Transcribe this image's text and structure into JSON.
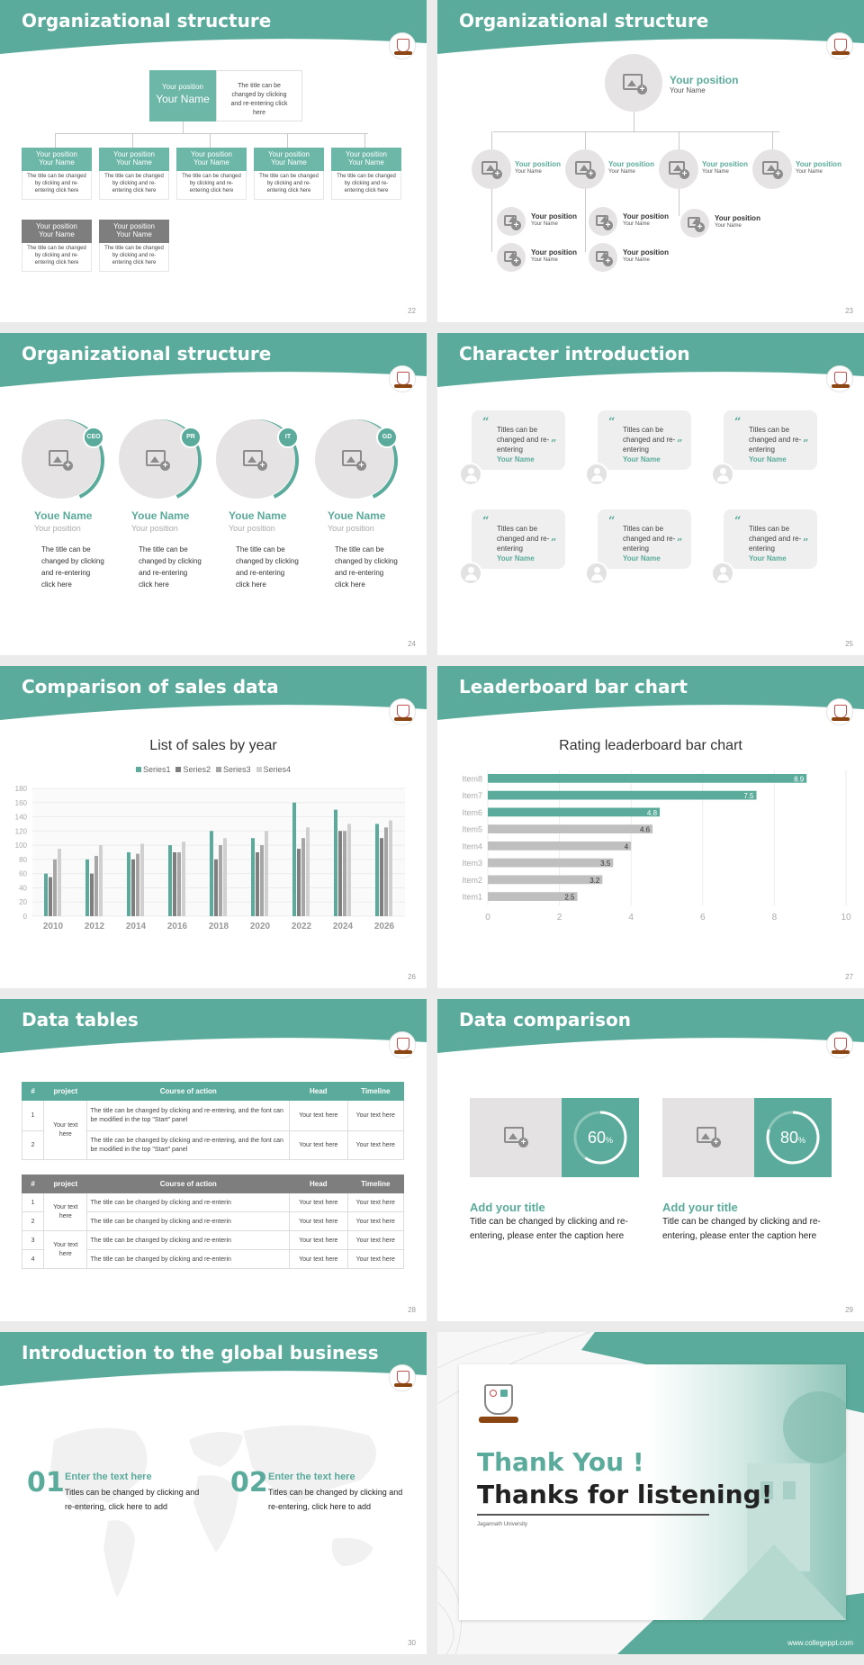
{
  "slide22": {
    "title": "Organizational structure",
    "page": "22",
    "top": {
      "position": "Your position",
      "name": "Your Name",
      "desc": "The title can be changed by clicking and re-entering click here"
    },
    "members": [
      {
        "position": "Your position",
        "name": "Your Name",
        "desc": "The title can be changed by clicking and re-entering click here"
      },
      {
        "position": "Your position",
        "name": "Your Name",
        "desc": "The title can be changed by clicking and re-entering click here"
      },
      {
        "position": "Your position",
        "name": "Your Name",
        "desc": "The title can be changed by clicking and re-entering click here"
      },
      {
        "position": "Your position",
        "name": "Your Name",
        "desc": "The title can be changed by clicking and re-entering click here"
      },
      {
        "position": "Your position",
        "name": "Your Name",
        "desc": "The title can be changed by clicking and re-entering click here"
      },
      {
        "position": "Your position",
        "name": "Your Name",
        "desc": "The title can be changed by clicking and re-entering click here"
      },
      {
        "position": "Your position",
        "name": "Your Name",
        "desc": "The title can be changed by clicking and re-entering click here"
      }
    ]
  },
  "slide23": {
    "title": "Organizational structure",
    "page": "23",
    "top": {
      "position": "Your position",
      "name": "Your Name"
    },
    "level2": [
      {
        "position": "Your position",
        "name": "Your Name"
      },
      {
        "position": "Your position",
        "name": "Your Name"
      },
      {
        "position": "Your position",
        "name": "Your Name"
      },
      {
        "position": "Your position",
        "name": "Your Name"
      }
    ],
    "level3": [
      {
        "position": "Your position",
        "name": "Your Name"
      },
      {
        "position": "Your position",
        "name": "Your Name"
      },
      {
        "position": "Your position",
        "name": "Your Name"
      },
      {
        "position": "Your position",
        "name": "Your Name"
      },
      {
        "position": "Your position",
        "name": "Your Name"
      }
    ]
  },
  "slide24": {
    "title": "Organizational structure",
    "page": "24",
    "people": [
      {
        "badge": "CEO",
        "name": "Youe Name",
        "position": "Your position",
        "desc": "The title can be changed by clicking and re-entering click here"
      },
      {
        "badge": "PR",
        "name": "Youe Name",
        "position": "Your position",
        "desc": "The title can be changed by clicking and re-entering click here"
      },
      {
        "badge": "IT",
        "name": "Youe Name",
        "position": "Your position",
        "desc": "The title can be changed by clicking and re-entering click here"
      },
      {
        "badge": "GD",
        "name": "Youe Name",
        "position": "Your position",
        "desc": "The title can be changed by clicking and re-entering click here"
      }
    ]
  },
  "slide25": {
    "title": "Character introduction",
    "page": "25",
    "cards": [
      {
        "text": "Titles can be changed and re-entering",
        "name": "Your Name"
      },
      {
        "text": "Titles can be changed and re-entering",
        "name": "Your Name"
      },
      {
        "text": "Titles can be changed and re-entering",
        "name": "Your Name"
      },
      {
        "text": "Titles can be changed and re-entering",
        "name": "Your Name"
      },
      {
        "text": "Titles can be changed and re-entering",
        "name": "Your Name"
      },
      {
        "text": "Titles can be changed and re-entering",
        "name": "Your Name"
      }
    ]
  },
  "slide26": {
    "title": "Comparison of sales data",
    "page": "26",
    "chart_data": {
      "type": "bar",
      "title": "List of sales by year",
      "categories": [
        "2010",
        "2012",
        "2014",
        "2016",
        "2018",
        "2020",
        "2022",
        "2024",
        "2026"
      ],
      "ylim": [
        0,
        180
      ],
      "yticks": [
        "0",
        "20",
        "40",
        "60",
        "80",
        "100",
        "120",
        "140",
        "160",
        "180"
      ],
      "legend": "top",
      "grid": true,
      "colors": [
        "#5aab9b",
        "#7f7f7f",
        "#a6a6a6",
        "#d0d0d0"
      ],
      "series": [
        {
          "name": "Series1",
          "values": [
            60,
            80,
            90,
            100,
            120,
            110,
            160,
            150,
            130
          ]
        },
        {
          "name": "Series2",
          "values": [
            55,
            60,
            80,
            90,
            80,
            90,
            95,
            120,
            110
          ]
        },
        {
          "name": "Series3",
          "values": [
            80,
            85,
            88,
            90,
            100,
            100,
            110,
            120,
            125
          ]
        },
        {
          "name": "Series4",
          "values": [
            95,
            100,
            102,
            105,
            110,
            120,
            125,
            130,
            135
          ]
        }
      ]
    }
  },
  "slide27": {
    "title": "Leaderboard bar chart",
    "page": "27",
    "chart_data": {
      "type": "bar",
      "orientation": "horizontal",
      "title": "Rating leaderboard bar chart",
      "categories": [
        "Item8",
        "Item7",
        "Item6",
        "Item5",
        "Item4",
        "Item3",
        "Item2",
        "Item1"
      ],
      "values": [
        8.9,
        7.5,
        4.8,
        4.6,
        4,
        3.5,
        3.2,
        2.5
      ],
      "labels": [
        "8.9",
        "7.5",
        "4.8",
        "4.6",
        "4",
        "3.5",
        "3.2",
        "2.5"
      ],
      "xlim": [
        0,
        10
      ],
      "xticks": [
        "0",
        "2",
        "4",
        "6",
        "8",
        "10"
      ],
      "colors": [
        "#5aab9b",
        "#5aab9b",
        "#5aab9b",
        "#bfbfbf",
        "#bfbfbf",
        "#bfbfbf",
        "#bfbfbf",
        "#bfbfbf"
      ]
    }
  },
  "slide28": {
    "title": "Data tables",
    "page": "28",
    "headers": [
      "#",
      "project",
      "Course of action",
      "Head",
      "Timeline"
    ],
    "table1": {
      "project": "Your text here",
      "rows": [
        {
          "num": "1",
          "action": "The title can be changed by clicking and re-entering, and the font can be modified in the top \"Start\" panel",
          "head": "Your text here",
          "time": "Your text here"
        },
        {
          "num": "2",
          "action": "The title can be changed by clicking and re-entering, and the font can be modified in the top \"Start\" panel",
          "head": "Your text here",
          "time": "Your text here"
        }
      ]
    },
    "table2": {
      "project": "Your text here",
      "rows": [
        {
          "num": "1",
          "action": "The title can be changed by clicking and re-enterin",
          "head": "Your text here",
          "time": "Your text here"
        },
        {
          "num": "2",
          "action": "The title can be changed by clicking and re-enterin",
          "head": "Your text here",
          "time": "Your text here"
        },
        {
          "num": "3",
          "action": "The title can be changed by clicking and re-enterin",
          "head": "Your text here",
          "time": "Your text here"
        },
        {
          "num": "4",
          "action": "The title can be changed by clicking and re-enterin",
          "head": "Your text here",
          "time": "Your text here"
        }
      ]
    }
  },
  "slide29": {
    "title": "Data comparison",
    "page": "29",
    "items": [
      {
        "percent": 60,
        "label": "60",
        "unit": "%",
        "title": "Add your title",
        "desc": "Title can be changed by clicking and re-entering, please enter the caption here"
      },
      {
        "percent": 80,
        "label": "80",
        "unit": "%",
        "title": "Add your title",
        "desc": "Title can be changed by clicking and re-entering, please enter the caption here"
      }
    ]
  },
  "slide30": {
    "title": "Introduction to the global business",
    "page": "30",
    "items": [
      {
        "num": "01",
        "title": "Enter the text here",
        "desc": "Titles can be changed by clicking and re-entering, click here to add"
      },
      {
        "num": "02",
        "title": "Enter the text here",
        "desc": "Titles can be changed by clicking and re-entering, click here to add"
      }
    ]
  },
  "slide31": {
    "thank": "Thank You !",
    "thanks": "Thanks for listening!",
    "university": "Jagannath University",
    "site": "www.collegeppt.com"
  },
  "colors": {
    "accent": "#5aab9b",
    "gray": "#7e7e7e"
  }
}
